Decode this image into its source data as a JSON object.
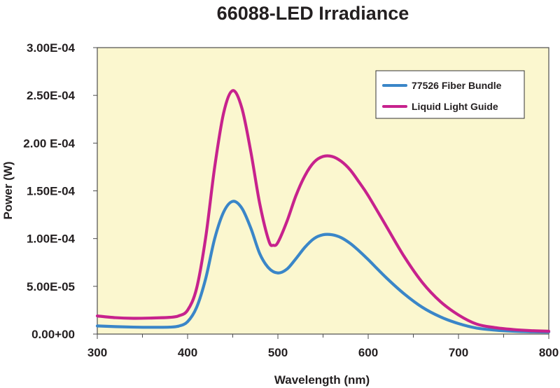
{
  "chart_data": {
    "type": "line",
    "title": "66088-LED Irradiance",
    "xlabel": "Wavelength (nm)",
    "ylabel": "Power (W)",
    "xlim": [
      300,
      800
    ],
    "ylim": [
      0,
      0.0003
    ],
    "x_ticks": [
      300,
      400,
      500,
      600,
      700,
      800
    ],
    "x_tick_labels": [
      "300",
      "400",
      "500",
      "600",
      "700",
      "800"
    ],
    "y_ticks": [
      0,
      5e-05,
      0.0001,
      0.00015,
      0.0002,
      0.00025,
      0.0003
    ],
    "y_tick_labels": [
      "0.00+00",
      "5.00E-05",
      "1.00E-04",
      "1.50E-04",
      "2.00 E-04",
      "2.50E-04",
      "3.00E-04"
    ],
    "x_minor_ticks": [
      350,
      450,
      550,
      650,
      750
    ],
    "plot_background": "#fbf7cf",
    "grid": false,
    "legend_position": "top-right",
    "series": [
      {
        "name": "77526 Fiber Bundle",
        "color": "#3a86c8",
        "points": [
          [
            300,
            8.5e-06
          ],
          [
            320,
            7.8e-06
          ],
          [
            340,
            7.3e-06
          ],
          [
            360,
            7.1e-06
          ],
          [
            380,
            7.3e-06
          ],
          [
            390,
            8.3e-06
          ],
          [
            400,
            1.3e-05
          ],
          [
            410,
            2.8e-05
          ],
          [
            420,
            5.8e-05
          ],
          [
            430,
            0.0001
          ],
          [
            440,
            0.000128
          ],
          [
            450,
            0.000139
          ],
          [
            460,
            0.000132
          ],
          [
            470,
            0.000111
          ],
          [
            480,
            8.4e-05
          ],
          [
            490,
            6.9e-05
          ],
          [
            500,
            6.4e-05
          ],
          [
            510,
            6.8e-05
          ],
          [
            520,
            7.9e-05
          ],
          [
            530,
            9.1e-05
          ],
          [
            540,
            0.0001
          ],
          [
            550,
            0.000104
          ],
          [
            560,
            0.000104
          ],
          [
            570,
            0.000101
          ],
          [
            580,
            9.5e-05
          ],
          [
            590,
            8.7e-05
          ],
          [
            600,
            7.8e-05
          ],
          [
            620,
            5.9e-05
          ],
          [
            640,
            4.2e-05
          ],
          [
            660,
            2.8e-05
          ],
          [
            680,
            1.8e-05
          ],
          [
            700,
            1.1e-05
          ],
          [
            720,
            6.3e-06
          ],
          [
            740,
            4.2e-06
          ],
          [
            760,
            3e-06
          ],
          [
            780,
            2.4e-06
          ],
          [
            800,
            2.2e-06
          ]
        ]
      },
      {
        "name": "Liquid Light Guide",
        "color": "#c7228d",
        "points": [
          [
            300,
            1.9e-05
          ],
          [
            320,
            1.72e-05
          ],
          [
            340,
            1.65e-05
          ],
          [
            360,
            1.68e-05
          ],
          [
            380,
            1.75e-05
          ],
          [
            390,
            1.9e-05
          ],
          [
            400,
            2.5e-05
          ],
          [
            410,
            4.8e-05
          ],
          [
            420,
            0.000101
          ],
          [
            430,
            0.000175
          ],
          [
            440,
            0.000232
          ],
          [
            450,
            0.000255
          ],
          [
            460,
            0.000237
          ],
          [
            470,
            0.000191
          ],
          [
            480,
            0.000136
          ],
          [
            490,
            9.75e-05
          ],
          [
            495,
            9.3e-05
          ],
          [
            500,
            9.6e-05
          ],
          [
            510,
            0.000118
          ],
          [
            520,
            0.000145
          ],
          [
            530,
            0.000166
          ],
          [
            540,
            0.00018
          ],
          [
            550,
            0.000186
          ],
          [
            560,
            0.000186
          ],
          [
            570,
            0.000181
          ],
          [
            580,
            0.000172
          ],
          [
            590,
            0.000159
          ],
          [
            600,
            0.000145
          ],
          [
            620,
            0.000113
          ],
          [
            640,
            8.1e-05
          ],
          [
            660,
            5.4e-05
          ],
          [
            680,
            3.4e-05
          ],
          [
            700,
            2e-05
          ],
          [
            720,
            1.05e-05
          ],
          [
            740,
            6.8e-06
          ],
          [
            760,
            4.8e-06
          ],
          [
            780,
            3.6e-06
          ],
          [
            800,
            3e-06
          ]
        ]
      }
    ]
  }
}
